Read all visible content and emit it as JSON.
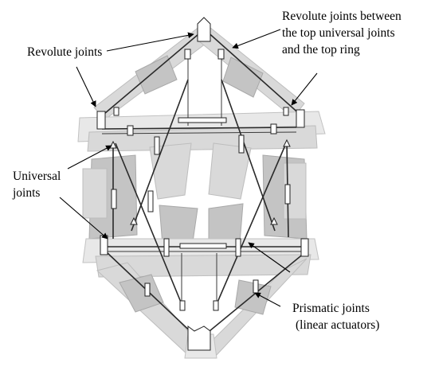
{
  "labels": {
    "revolute_joints": "Revolute joints",
    "revolute_between_line1": "Revolute joints between",
    "revolute_between_line2": "the top universal joints",
    "revolute_between_line3": "and the top ring",
    "universal_line1": "Universal",
    "universal_line2": "joints",
    "prismatic_line1": "Prismatic joints",
    "prismatic_line2": "(linear actuators)"
  },
  "colors": {
    "body": "#d9d9d9",
    "link": "#2a2a2a",
    "text": "#000000"
  }
}
